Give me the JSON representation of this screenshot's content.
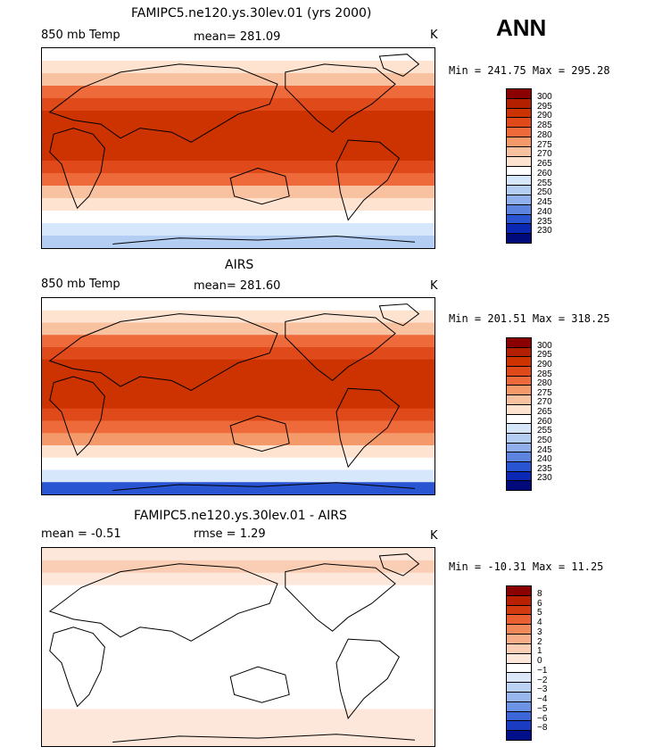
{
  "season": "ANN",
  "panels": [
    {
      "title": "FAMIPC5.ne120.ys.30lev.01 (yrs 2000)",
      "left_label": "850 mb Temp",
      "center_label": "mean= 281.09",
      "units": "K",
      "minmax": "Min = 241.75 Max = 295.28",
      "levels": [
        "300",
        "295",
        "290",
        "285",
        "280",
        "275",
        "270",
        "265",
        "260",
        "255",
        "250",
        "245",
        "240",
        "235",
        "230"
      ]
    },
    {
      "title": "AIRS",
      "left_label": "850 mb Temp",
      "center_label": "mean= 281.60",
      "units": "K",
      "minmax": "Min = 201.51 Max = 318.25",
      "levels": [
        "300",
        "295",
        "290",
        "285",
        "280",
        "275",
        "270",
        "265",
        "260",
        "255",
        "250",
        "245",
        "240",
        "235",
        "230"
      ]
    },
    {
      "title": "FAMIPC5.ne120.ys.30lev.01 - AIRS",
      "left_label": "mean =  -0.51",
      "center_label": "rmse =   1.29",
      "units": "K",
      "minmax": "Min = -10.31 Max =  11.25",
      "levels": [
        "8",
        "6",
        "5",
        "4",
        "3",
        "2",
        "1",
        "0",
        "−1",
        "−2",
        "−3",
        "−4",
        "−5",
        "−6",
        "−8"
      ]
    }
  ],
  "colors": {
    "abs_scale": [
      "#8b0000",
      "#b32000",
      "#cc3300",
      "#e04a1a",
      "#ee6a3a",
      "#f49a6a",
      "#f8c2a0",
      "#fde3d0",
      "#ffffff",
      "#d6e6fb",
      "#b4cdf3",
      "#8fb0ec",
      "#5d85e0",
      "#2a55d2",
      "#0a28b4",
      "#000a7a"
    ],
    "diff_scale": [
      "#8b0000",
      "#b82000",
      "#d33a10",
      "#ea6030",
      "#f2895a",
      "#f6ad88",
      "#f9ceb4",
      "#fde7da",
      "#ffffff",
      "#dce8fa",
      "#bcd2f4",
      "#98b7ef",
      "#6d93e6",
      "#3d66d8",
      "#1a3cc2",
      "#00108a"
    ]
  },
  "chart_data": [
    {
      "type": "heatmap",
      "title": "FAMIPC5.ne120.ys.30lev.01 (yrs 2000)",
      "variable": "850 mb Temp",
      "units": "K",
      "mean": 281.09,
      "min": 241.75,
      "max": 295.28,
      "contour_levels": [
        230,
        235,
        240,
        245,
        250,
        255,
        260,
        265,
        270,
        275,
        280,
        285,
        290,
        295,
        300
      ],
      "zonal_band_values_north_to_south": [
        262,
        268,
        274,
        280,
        286,
        290,
        292,
        292,
        291,
        288,
        282,
        274,
        266,
        260,
        256,
        250
      ]
    },
    {
      "type": "heatmap",
      "title": "AIRS",
      "variable": "850 mb Temp",
      "units": "K",
      "mean": 281.6,
      "min": 201.51,
      "max": 318.25,
      "contour_levels": [
        230,
        235,
        240,
        245,
        250,
        255,
        260,
        265,
        270,
        275,
        280,
        285,
        290,
        295,
        300
      ],
      "zonal_band_values_north_to_south": [
        262,
        268,
        274,
        281,
        287,
        291,
        293,
        293,
        292,
        289,
        283,
        275,
        267,
        261,
        255,
        238
      ]
    },
    {
      "type": "heatmap",
      "title": "FAMIPC5.ne120.ys.30lev.01 - AIRS",
      "units": "K",
      "mean": -0.51,
      "rmse": 1.29,
      "min": -10.31,
      "max": 11.25,
      "contour_levels": [
        -8,
        -6,
        -5,
        -4,
        -3,
        -2,
        -1,
        0,
        1,
        2,
        3,
        4,
        5,
        6,
        8
      ],
      "zonal_band_values_north_to_south": [
        0.5,
        1,
        0.5,
        -0.5,
        -0.5,
        -1,
        -0.5,
        -1,
        -1,
        -0.5,
        -1,
        -0.5,
        -0.5,
        0,
        0.5,
        0
      ]
    }
  ]
}
